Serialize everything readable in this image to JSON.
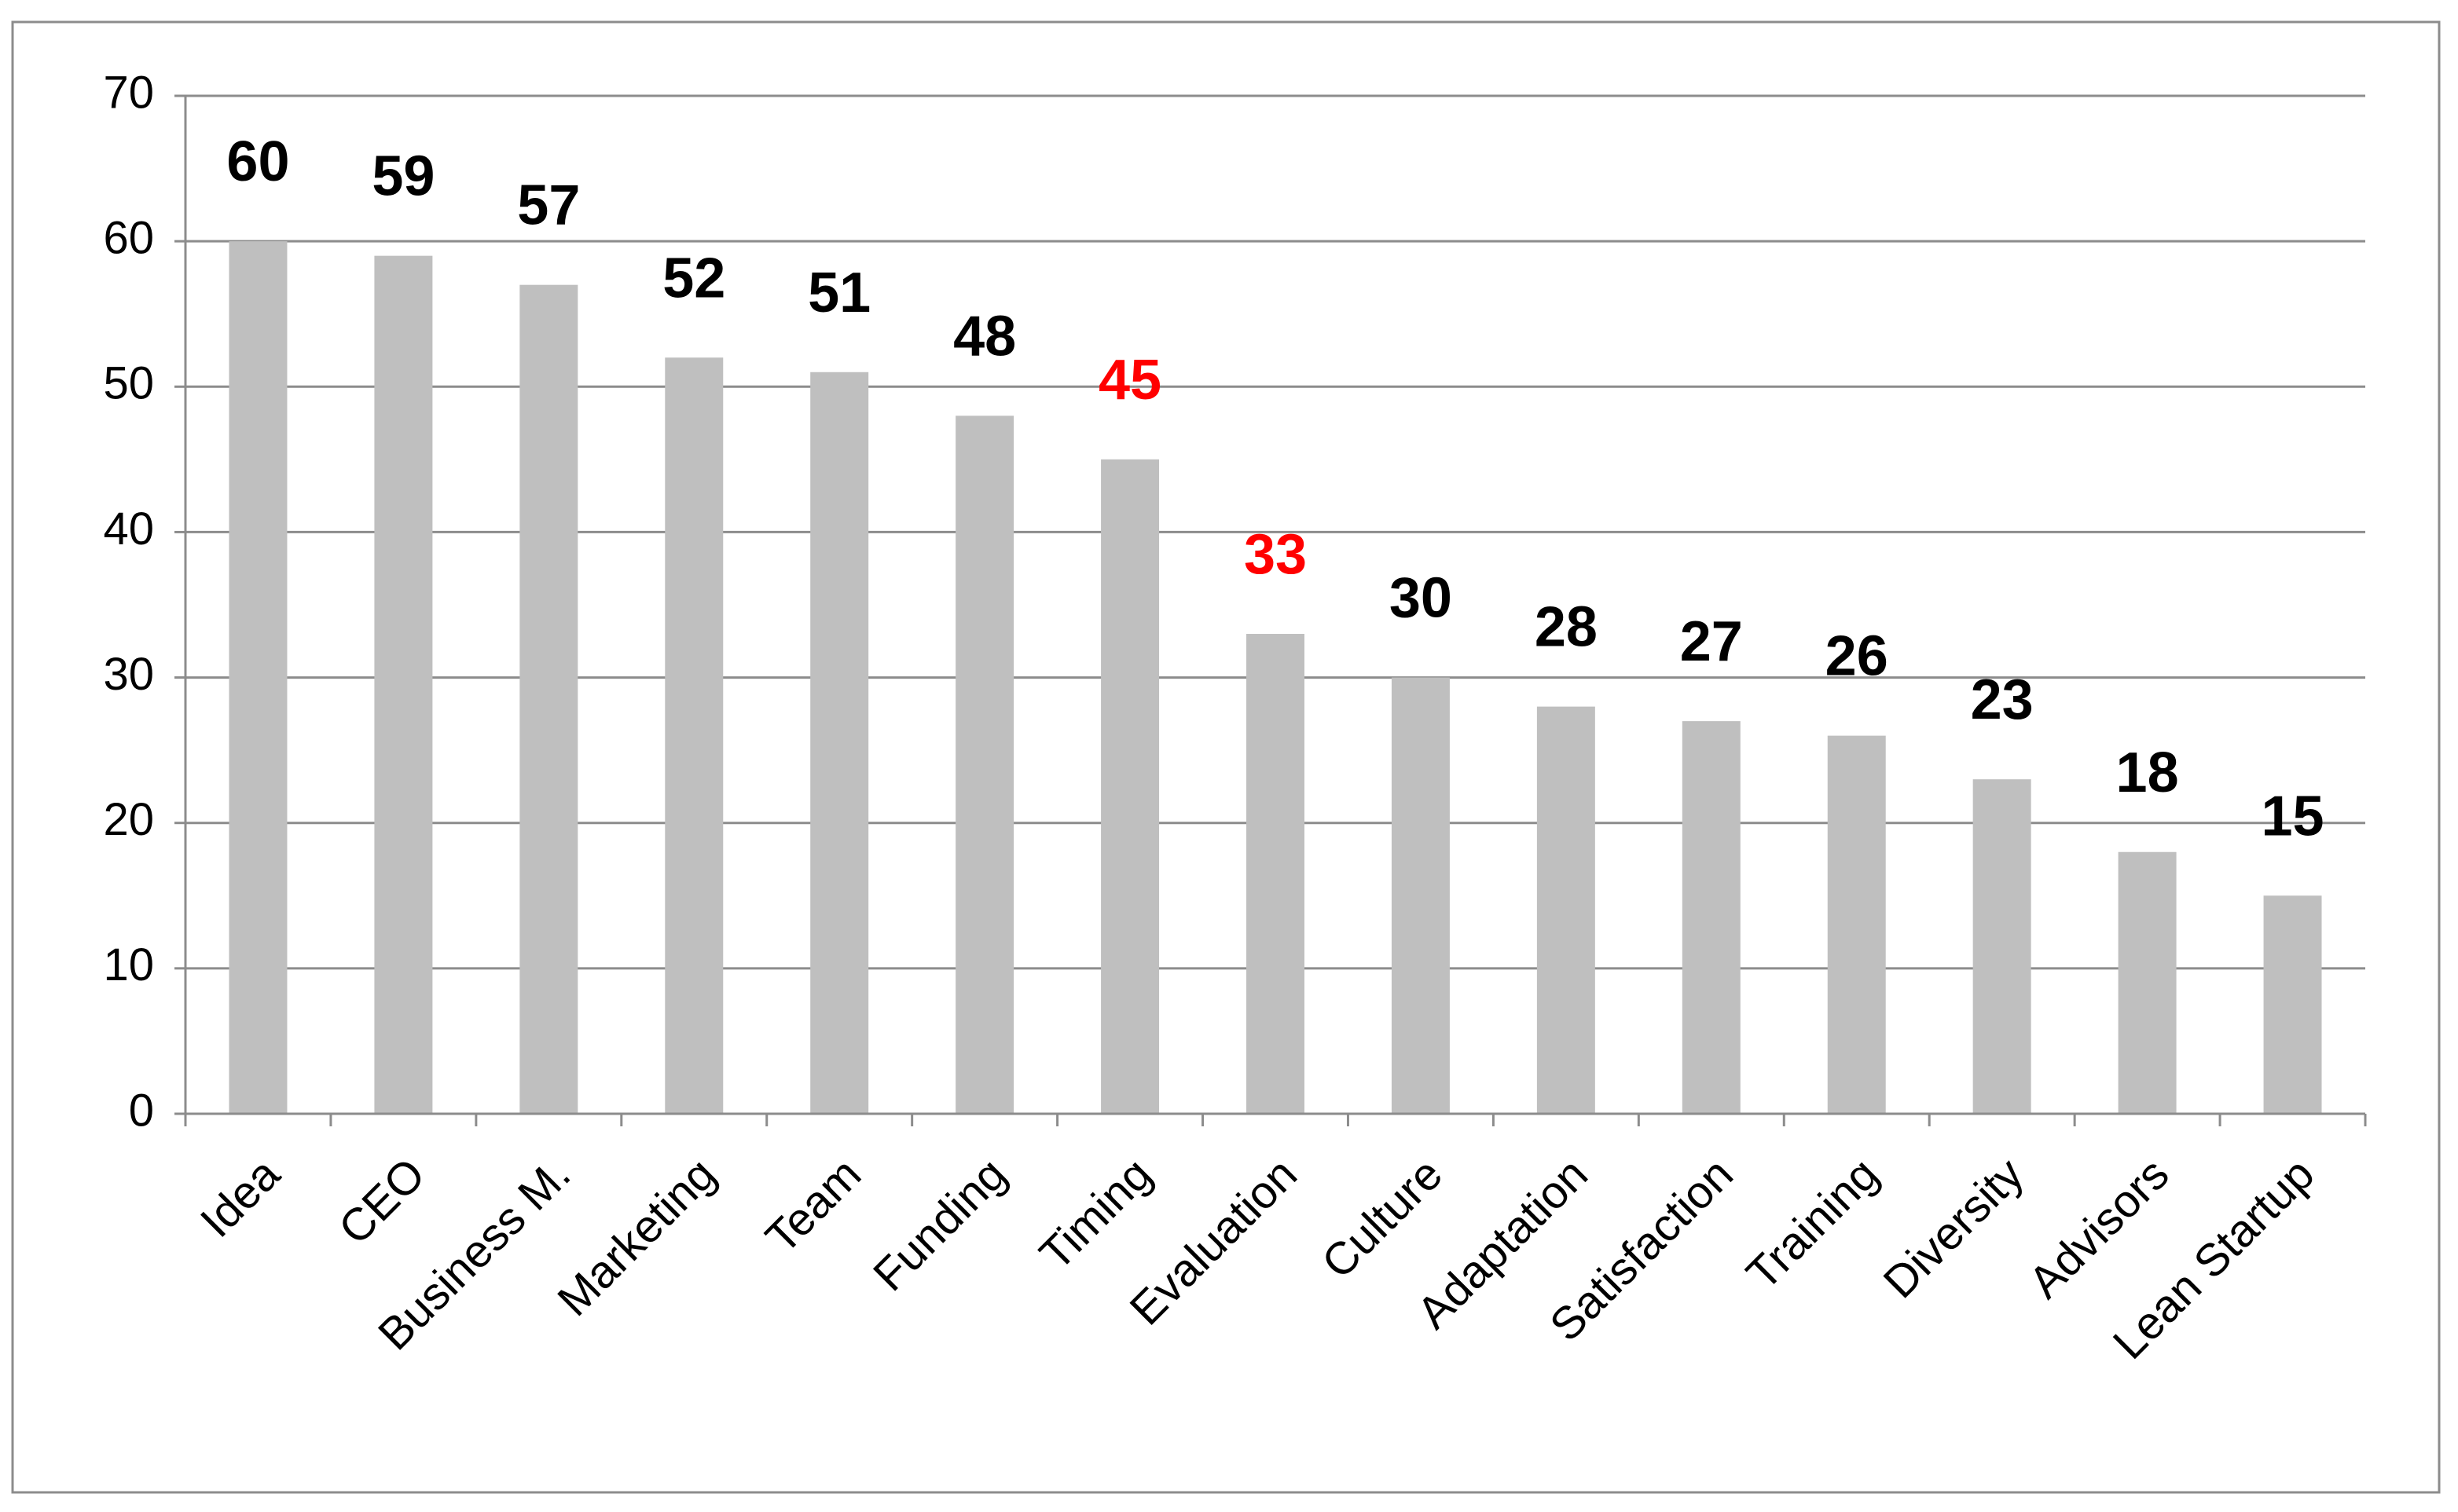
{
  "chart_data": {
    "type": "bar",
    "categories": [
      "Idea",
      "CEO",
      "Business M.",
      "Marketing",
      "Team",
      "Funding",
      "Timing",
      "Evaluation",
      "Culture",
      "Adaptation",
      "Satisfaction",
      "Training",
      "Diversity",
      "Advisors",
      "Lean Startup"
    ],
    "values": [
      60,
      59,
      57,
      52,
      51,
      48,
      45,
      33,
      30,
      28,
      27,
      26,
      23,
      18,
      15
    ],
    "color": "#bfbfbf",
    "value_label_colors": [
      "#000000",
      "#000000",
      "#000000",
      "#000000",
      "#000000",
      "#000000",
      "#ff0000",
      "#ff0000",
      "#000000",
      "#000000",
      "#000000",
      "#000000",
      "#000000",
      "#000000",
      "#000000"
    ],
    "ylim": [
      0,
      70
    ],
    "yticks": [
      0,
      10,
      20,
      30,
      40,
      50,
      60,
      70
    ],
    "grid": true
  }
}
